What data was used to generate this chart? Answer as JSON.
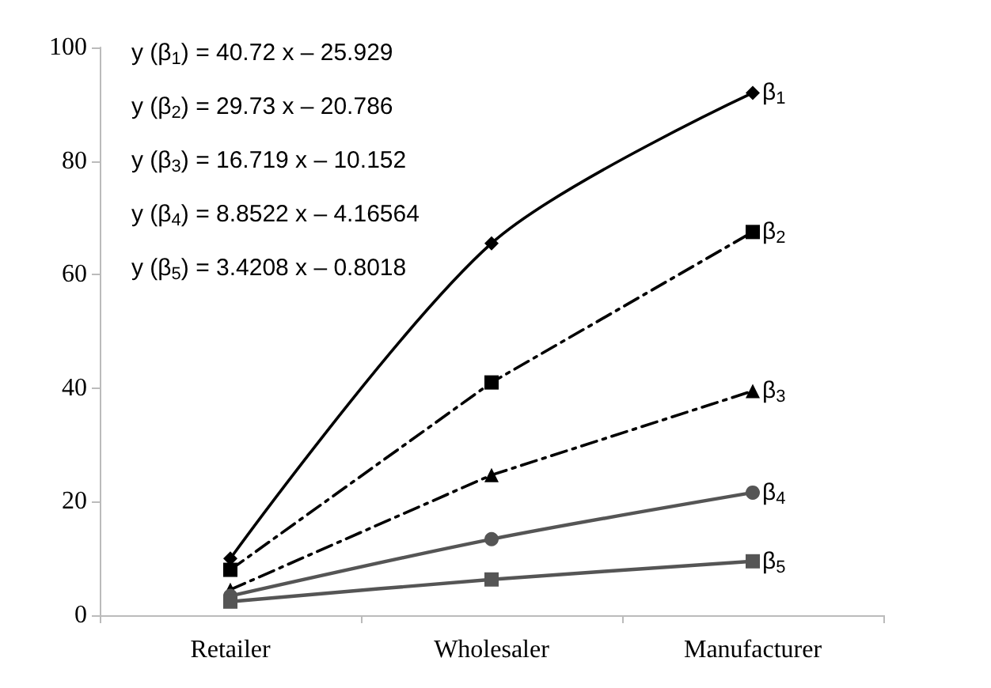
{
  "chart_data": {
    "type": "line",
    "categories": [
      "Retailer",
      "Wholesaler",
      "Manufacturer"
    ],
    "series": [
      {
        "name": "β$_{1}$",
        "color": "#000000",
        "values": [
          10,
          65.5,
          92
        ],
        "marker": "diamond",
        "line_style": "solid"
      },
      {
        "name": "β$_{2}$",
        "color": "#000000",
        "values": [
          8,
          41,
          67.5
        ],
        "marker": "square",
        "line_style": "dashed"
      },
      {
        "name": "β$_{3}$",
        "color": "#000000",
        "values": [
          4.5,
          24.7,
          39.5
        ],
        "marker": "triangle",
        "line_style": "dashed"
      },
      {
        "name": "β$_{4}$",
        "color": "#555555",
        "values": [
          3.4,
          13.4,
          21.6
        ],
        "marker": "circle",
        "line_style": "solid"
      },
      {
        "name": "β$_{5}$",
        "color": "#555555",
        "values": [
          2.4,
          6.3,
          9.5
        ],
        "marker": "square",
        "line_style": "solid"
      }
    ],
    "ylim": [
      0,
      100
    ],
    "yticks": [
      0,
      20,
      40,
      60,
      80,
      100
    ],
    "grid": false,
    "legend": false,
    "annotations": [
      "y (β$_{1}$) = 40.72 x – 25.929",
      "y (β$_{2}$) = 29.73 x – 20.786",
      "y (β$_{3}$) = 16.719 x – 10.152",
      "y (β$_{4}$) = 8.8522 x – 4.16564",
      "y (β$_{5}$) = 3.4208 x – 0.8018"
    ]
  }
}
